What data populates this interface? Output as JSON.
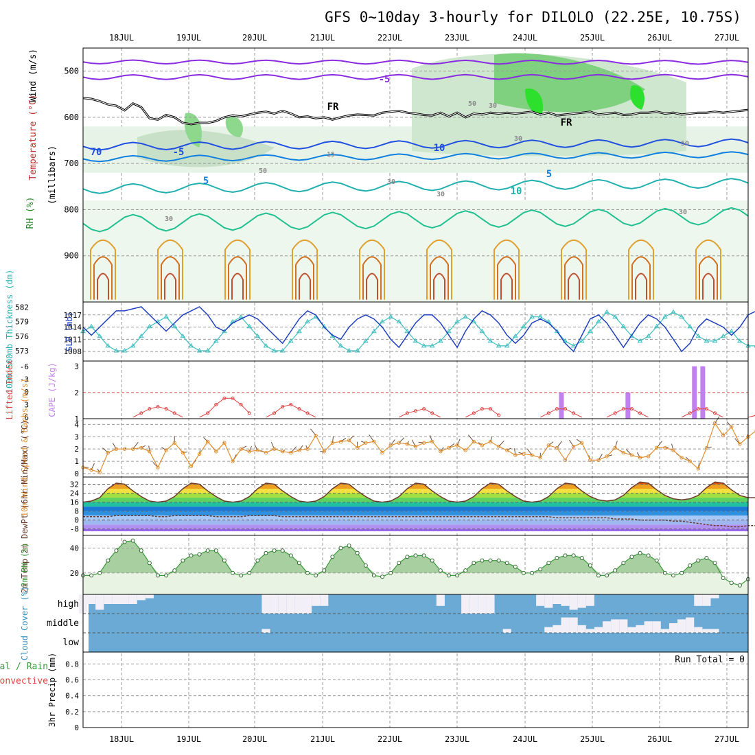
{
  "title": "GFS 0~10day 3-hourly for DILOLO (22.25E, 10.75S)",
  "date_labels": [
    "18JUL",
    "19JUL",
    "20JUL",
    "21JUL",
    "22JUL",
    "23JUL",
    "24JUL",
    "25JUL",
    "26JUL",
    "27JUL"
  ],
  "colors": {
    "grid": "#999999",
    "rh_green": "#3fbf3f",
    "temp_purple": "#8a2be2",
    "slp": "#1f3fbf",
    "thickness": "#3fbfbf",
    "lifted": "#e04040",
    "cape": "#c080f0",
    "wind10": "#e09030",
    "rh2m": "#3a9a3a",
    "cloud": "#6aaad4",
    "precip_rain": "#3a9a3a",
    "precip_conv": "#e04040"
  },
  "chart_data": [
    {
      "panel": "upper-air",
      "type": "heatmap",
      "ylabel_parts": [
        "Wind (m/s)",
        "Temperature (°C)",
        "RH (%)",
        "(millibars)"
      ],
      "yticks": [
        500,
        600,
        700,
        800,
        900
      ],
      "ylim": [
        1000,
        450
      ],
      "contour_labels": [
        "-5",
        "FR",
        "FR",
        "-5",
        "5",
        "10",
        "5",
        "10",
        "15",
        "30",
        "30",
        "30",
        "50",
        "50",
        "30",
        "50",
        "70",
        "30",
        "30"
      ],
      "freezing_level_mb": [
        558,
        560,
        565,
        572,
        575,
        585,
        570,
        578,
        602,
        605,
        595,
        600,
        612,
        615,
        612,
        612,
        608,
        600,
        596,
        598,
        594,
        590,
        588,
        592,
        586,
        592,
        600,
        598,
        602,
        600,
        605,
        600,
        596,
        594,
        595,
        596,
        590,
        588,
        586,
        590,
        592,
        595,
        596,
        590,
        598,
        590,
        600,
        592,
        594,
        590,
        592,
        590,
        592,
        590,
        588,
        594,
        590,
        596,
        594,
        592,
        590,
        588,
        594,
        592,
        590,
        595,
        594,
        590,
        590,
        588,
        592,
        590,
        594,
        592,
        590,
        590,
        588,
        590,
        588,
        586,
        584
      ]
    },
    {
      "panel": "thickness-slp",
      "type": "line",
      "ylabel_left": "1000-500mb Thickness (dm)",
      "ylabel_right": "SLP (mb)",
      "yticks_left": [
        573,
        576,
        579,
        582
      ],
      "yticks_right": [
        1008,
        1011,
        1014,
        1017
      ],
      "series": [
        {
          "name": "SLP",
          "values": [
            1014,
            1012,
            1014,
            1016,
            1018,
            1018,
            1018.5,
            1019,
            1017,
            1015,
            1013,
            1015,
            1017,
            1018,
            1019,
            1017,
            1014,
            1013,
            1015,
            1016,
            1017,
            1016,
            1014,
            1012,
            1010,
            1013,
            1016,
            1018,
            1017,
            1014,
            1012,
            1011,
            1014,
            1016,
            1017,
            1016,
            1014,
            1011,
            1009,
            1012,
            1015,
            1017,
            1017,
            1015,
            1012,
            1009,
            1013,
            1016,
            1018,
            1017,
            1015,
            1012,
            1010,
            1012,
            1015,
            1016,
            1015,
            1013,
            1010,
            1008,
            1012,
            1016,
            1017,
            1015,
            1012,
            1009,
            1012,
            1015,
            1017,
            1016,
            1014,
            1011,
            1008,
            1010,
            1014,
            1016,
            1015,
            1014,
            1012,
            1014,
            1017,
            1018
          ]
        },
        {
          "name": "Thickness",
          "values": [
            577,
            578,
            576,
            574,
            573,
            573,
            574,
            576,
            578,
            579,
            580,
            578,
            576,
            574,
            573,
            573,
            575,
            577,
            579,
            580,
            578,
            576,
            574,
            573,
            573,
            575,
            577,
            579,
            580,
            578,
            576,
            574,
            573,
            573,
            575,
            577,
            579,
            580,
            579,
            577,
            575,
            574,
            574,
            575,
            577,
            579,
            580,
            579,
            577,
            575,
            574,
            574,
            576,
            578,
            580,
            580,
            579,
            577,
            575,
            574,
            575,
            577,
            579,
            581,
            580,
            578,
            576,
            575,
            576,
            578,
            580,
            581,
            580,
            578,
            576,
            575,
            575,
            576,
            577,
            575,
            574,
            574
          ]
        }
      ]
    },
    {
      "panel": "stability",
      "type": "bar",
      "ylabel_left": "Lifted Index",
      "ylabel_right": "CAPE (J/kg)",
      "yticks_left": [
        "-6",
        "-3",
        "0",
        "3",
        "6"
      ],
      "yticks_right": [
        "1",
        "2",
        "3"
      ],
      "series": [
        {
          "name": "CAPE",
          "type": "bar",
          "x": [
            57.5,
            65.5,
            73.5,
            74.5
          ],
          "values": [
            2,
            2,
            3,
            3
          ]
        },
        {
          "name": "Lifted Index",
          "type": "line",
          "x": [
            6,
            7,
            8,
            9,
            10,
            11,
            12,
            14,
            15,
            16,
            17,
            18,
            19,
            20,
            22,
            23,
            24,
            25,
            26,
            27,
            28,
            38,
            39,
            40,
            41,
            42,
            43,
            46,
            47,
            48,
            49,
            50,
            55,
            56,
            57,
            58,
            59,
            60,
            63,
            64,
            65,
            66,
            67,
            68,
            72,
            73,
            74,
            75,
            76,
            77,
            80,
            81
          ],
          "values": [
            6,
            5,
            4,
            3.5,
            4,
            5,
            6,
            6,
            5,
            3,
            1.5,
            1.5,
            3,
            5,
            6,
            5,
            3.5,
            3,
            4,
            5,
            6,
            6,
            5,
            4.5,
            4,
            5,
            6,
            6,
            5,
            4,
            4,
            5.5,
            6,
            5,
            4,
            4,
            5,
            6,
            6,
            5,
            4,
            4,
            5,
            6,
            6,
            5,
            4,
            4,
            5,
            6,
            6,
            5.5
          ]
        }
      ]
    },
    {
      "panel": "wind10m",
      "type": "line",
      "ylabel": "10m Wind Speed & Barbs (m/s)",
      "yticks": [
        0,
        1,
        2,
        3,
        4
      ],
      "series": [
        {
          "name": "Wind speed",
          "values": [
            0.5,
            0.3,
            0.1,
            1.7,
            2,
            2,
            2,
            2.1,
            1.8,
            0.5,
            1.9,
            2.5,
            1.7,
            0.6,
            1.6,
            2.6,
            1.8,
            2.5,
            1,
            2,
            1.8,
            1.9,
            1.7,
            2,
            1.8,
            1.7,
            1.9,
            2,
            3.1,
            1.8,
            2.5,
            2.6,
            2.7,
            2.1,
            2.5,
            2.6,
            1.7,
            2.3,
            2.5,
            2.4,
            2.2,
            2.5,
            2.6,
            1.8,
            2.1,
            2.3,
            1.9,
            2.6,
            2.3,
            2.6,
            2.2,
            1.9,
            1.5,
            1.6,
            1.5,
            1.3,
            2.3,
            2.1,
            1.1,
            2.2,
            2.5,
            1.1,
            1.1,
            1.4,
            2.1,
            1.7,
            1.5,
            1.3,
            1.4,
            2.1,
            2.1,
            1.9,
            1.3,
            1,
            0.4,
            2.1,
            4.1,
            3.1,
            3.8,
            2.4,
            3,
            3.5
          ]
        }
      ]
    },
    {
      "panel": "temp2m",
      "type": "area",
      "ylabel": "2m Temp 2m DewPt (6hr Min/Max) (°C)",
      "yticks": [
        -8,
        0,
        8,
        16,
        24,
        32
      ],
      "series": [
        {
          "name": "2m Temp",
          "values": [
            16,
            17,
            20,
            28,
            33,
            32,
            26,
            21,
            17,
            16,
            17,
            21,
            28,
            33,
            32,
            26,
            21,
            17,
            16,
            17,
            21,
            28,
            33,
            32,
            26,
            21,
            17,
            16,
            17,
            21,
            28,
            33,
            32,
            26,
            21,
            17,
            16,
            17,
            21,
            28,
            33,
            32,
            26,
            21,
            17,
            16,
            17,
            21,
            28,
            33,
            32,
            26,
            21,
            17,
            16,
            17,
            21,
            28,
            33,
            32,
            26,
            21,
            18,
            17,
            18,
            22,
            29,
            34,
            33,
            27,
            22,
            19,
            18,
            19,
            22,
            29,
            34,
            33,
            27,
            22,
            20,
            20
          ]
        },
        {
          "name": "2m DewPt",
          "values": [
            3,
            3,
            3,
            3,
            4,
            4,
            4,
            4,
            4,
            3,
            3,
            4,
            4,
            4,
            4,
            4,
            3,
            3,
            3,
            3,
            4,
            4,
            4,
            4,
            3,
            3,
            3,
            3,
            3,
            3,
            3,
            3,
            3,
            3,
            3,
            3,
            3,
            3,
            3,
            3,
            3,
            3,
            3,
            3,
            3,
            3,
            3,
            3,
            3,
            3,
            3,
            3,
            3,
            3,
            3,
            3,
            3,
            2,
            2,
            2,
            2,
            2,
            2,
            2,
            1,
            1,
            1,
            0,
            0,
            0,
            0,
            -1,
            -1,
            -2,
            -3,
            -4,
            -5,
            -5,
            -6,
            -6,
            -5,
            -5
          ]
        }
      ]
    },
    {
      "panel": "rh2m",
      "type": "area",
      "ylabel": "2m RH (%)",
      "yticks": [
        20,
        40
      ],
      "series": [
        {
          "name": "2m RH",
          "values": [
            18,
            18,
            20,
            30,
            38,
            45,
            46,
            38,
            28,
            18,
            18,
            22,
            30,
            34,
            35,
            38,
            38,
            30,
            20,
            18,
            20,
            30,
            36,
            38,
            38,
            34,
            28,
            20,
            18,
            22,
            33,
            40,
            42,
            36,
            26,
            18,
            17,
            20,
            28,
            33,
            34,
            34,
            30,
            22,
            18,
            18,
            22,
            28,
            30,
            30,
            30,
            28,
            25,
            20,
            20,
            23,
            28,
            32,
            34,
            34,
            32,
            26,
            18,
            18,
            22,
            28,
            33,
            36,
            34,
            30,
            20,
            18,
            20,
            26,
            30,
            32,
            28,
            16,
            12,
            10,
            15,
            17,
            20,
            21
          ]
        }
      ]
    },
    {
      "panel": "cloud",
      "type": "area",
      "ylabel": "Cloud Cover (%)",
      "category_labels": [
        "high",
        "middle",
        "low"
      ],
      "series": [
        {
          "name": "high",
          "values": [
            1,
            0.5,
            0.8,
            0.5,
            0.5,
            0.5,
            0.5,
            0.3,
            0.2,
            0,
            0,
            0,
            0,
            0,
            0,
            0,
            0,
            0,
            0,
            0,
            0,
            0,
            1,
            1,
            1,
            1,
            1,
            1,
            0.6,
            0.6,
            0,
            0,
            0,
            0,
            0,
            0,
            0,
            0,
            0,
            0,
            0,
            0,
            0,
            0.6,
            0,
            0,
            1,
            1,
            1,
            1,
            0,
            0,
            0,
            0,
            0,
            0.6,
            0.7,
            0.5,
            0.6,
            0.8,
            0.7,
            0.6,
            0,
            0,
            0,
            0,
            0,
            0,
            0,
            0,
            0,
            0,
            0,
            0,
            0.6,
            0.6,
            0.2,
            0,
            0,
            0,
            0,
            0,
            0
          ]
        },
        {
          "name": "middle",
          "values": [
            0,
            0,
            0,
            0,
            0,
            0,
            0,
            0,
            0,
            0,
            0,
            0,
            0,
            0,
            0,
            0,
            0,
            0,
            0,
            0,
            0,
            0,
            0.2,
            0,
            0,
            0,
            0,
            0,
            0,
            0,
            0,
            0,
            0,
            0,
            0,
            0,
            0,
            0,
            0,
            0,
            0,
            0,
            0,
            0,
            0,
            0,
            0,
            0,
            0,
            0,
            0,
            0.2,
            0,
            0,
            0,
            0,
            0.3,
            0.4,
            0.8,
            0.8,
            0.4,
            0.2,
            0.3,
            0.6,
            0.7,
            0.7,
            0.3,
            0.4,
            0.6,
            0.6,
            0.2,
            0.5,
            0.7,
            0.8,
            0.3,
            0.2,
            0.2,
            0,
            0,
            0,
            0,
            0
          ]
        }
      ]
    },
    {
      "panel": "precip",
      "type": "bar",
      "ylabel": "3hr Precip (mm)",
      "legend": [
        "Total / Rain",
        "Convective"
      ],
      "yticks": [
        "0",
        "0.2",
        "0.4",
        "0.6",
        "0.8"
      ],
      "run_total_label": "Run Total = 0",
      "values": []
    }
  ]
}
